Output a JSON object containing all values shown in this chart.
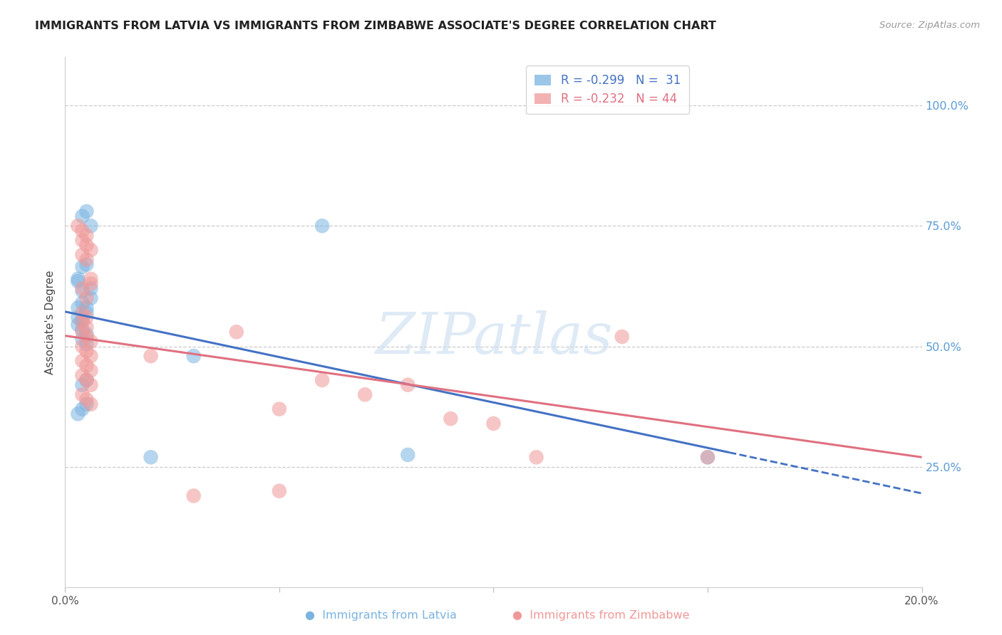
{
  "title": "IMMIGRANTS FROM LATVIA VS IMMIGRANTS FROM ZIMBABWE ASSOCIATE'S DEGREE CORRELATION CHART",
  "source": "Source: ZipAtlas.com",
  "ylabel": "Associate's Degree",
  "right_ytick_vals": [
    0.25,
    0.5,
    0.75,
    1.0
  ],
  "right_ytick_labels": [
    "25.0%",
    "50.0%",
    "75.0%",
    "100.0%"
  ],
  "xmin": 0.0,
  "xmax": 0.2,
  "ymin": 0.0,
  "ymax": 1.1,
  "legend_r_latvia": "-0.299",
  "legend_n_latvia": "31",
  "legend_r_zimbabwe": "-0.232",
  "legend_n_zimbabwe": "44",
  "color_latvia": "#7ab3e0",
  "color_zimbabwe": "#f09898",
  "trend_color_latvia": "#4472c4",
  "trend_color_zimbabwe": "#e07080",
  "watermark_color": "#cde0f0",
  "grid_color": "#cccccc",
  "latvia_x": [
    0.005,
    0.003,
    0.004,
    0.006,
    0.003,
    0.004,
    0.005,
    0.003,
    0.004,
    0.005,
    0.004,
    0.005,
    0.006,
    0.004,
    0.003,
    0.005,
    0.004,
    0.003,
    0.006,
    0.004,
    0.005,
    0.004,
    0.005,
    0.06,
    0.03,
    0.08,
    0.02,
    0.005,
    0.004,
    0.003,
    0.15
  ],
  "latvia_y": [
    0.57,
    0.58,
    0.59,
    0.6,
    0.56,
    0.555,
    0.58,
    0.545,
    0.535,
    0.525,
    0.515,
    0.505,
    0.62,
    0.615,
    0.635,
    0.67,
    0.665,
    0.64,
    0.75,
    0.77,
    0.78,
    0.42,
    0.43,
    0.75,
    0.48,
    0.275,
    0.27,
    0.38,
    0.37,
    0.36,
    0.27
  ],
  "zimbabwe_x": [
    0.004,
    0.005,
    0.004,
    0.005,
    0.006,
    0.004,
    0.005,
    0.006,
    0.004,
    0.005,
    0.006,
    0.004,
    0.005,
    0.003,
    0.004,
    0.005,
    0.006,
    0.004,
    0.005,
    0.004,
    0.005,
    0.006,
    0.004,
    0.005,
    0.006,
    0.04,
    0.02,
    0.06,
    0.08,
    0.1,
    0.07,
    0.13,
    0.05,
    0.09,
    0.004,
    0.005,
    0.006,
    0.004,
    0.005,
    0.006,
    0.11,
    0.15,
    0.05,
    0.03
  ],
  "zimbabwe_y": [
    0.55,
    0.54,
    0.53,
    0.52,
    0.51,
    0.5,
    0.49,
    0.48,
    0.72,
    0.71,
    0.7,
    0.69,
    0.68,
    0.75,
    0.74,
    0.73,
    0.63,
    0.62,
    0.6,
    0.57,
    0.56,
    0.64,
    0.47,
    0.46,
    0.45,
    0.53,
    0.48,
    0.43,
    0.42,
    0.34,
    0.4,
    0.52,
    0.37,
    0.35,
    0.4,
    0.39,
    0.38,
    0.44,
    0.43,
    0.42,
    0.27,
    0.27,
    0.2,
    0.19
  ],
  "trend_lat_x0": 0.0,
  "trend_lat_y0": 0.572,
  "trend_lat_x1": 0.155,
  "trend_lat_y1": 0.28,
  "trend_lat_dash_x1": 0.2,
  "trend_lat_dash_y1": 0.195,
  "trend_zim_x0": 0.0,
  "trend_zim_y0": 0.522,
  "trend_zim_x1": 0.2,
  "trend_zim_y1": 0.27
}
